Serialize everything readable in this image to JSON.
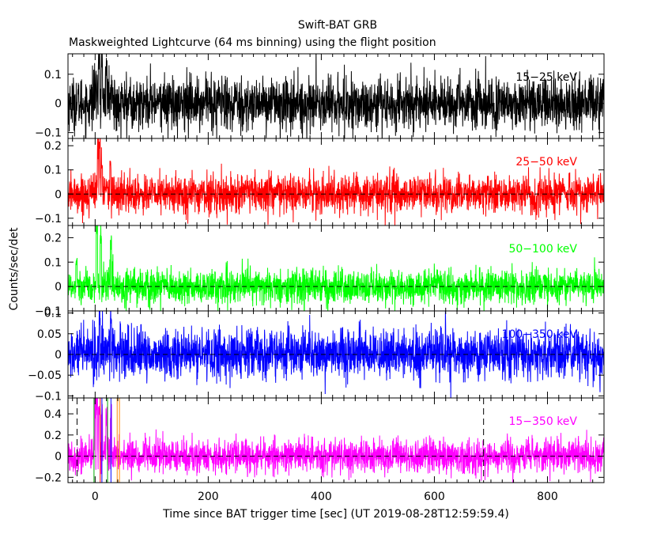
{
  "header": {
    "title": "Swift-BAT GRB",
    "subtitle": "Maskweighted Lightcurve (64 ms binning) using the flight position"
  },
  "axes": {
    "xlabel": "Time since BAT trigger time [sec] (UT 2019-08-28T12:59:59.4)",
    "ylabel": "Counts/sec/det"
  },
  "chart_data": {
    "type": "line",
    "title": "Swift-BAT GRB",
    "subtitle": "Maskweighted Lightcurve (64 ms binning) using the flight position",
    "xlabel": "Time since BAT trigger time [sec] (UT 2019-08-28T12:59:59.4)",
    "ylabel": "Counts/sec/det",
    "xlim": [
      -48,
      900
    ],
    "x_ticks": [
      0,
      200,
      400,
      600,
      800
    ],
    "x_tick_labels": [
      "0",
      "200",
      "400",
      "600",
      "800"
    ],
    "panels": [
      {
        "name": "15-25 keV",
        "label": "15−25 keV",
        "color": "#000000",
        "ylim": [
          -0.12,
          0.17
        ],
        "y_ticks": [
          -0.1,
          0,
          0.1
        ],
        "y_tick_labels": [
          "−0.1",
          "0",
          "0.1"
        ],
        "zero_line": false,
        "noise_sigma": 0.045,
        "peaks": [
          [
            7,
            0.16
          ],
          [
            12,
            0.15
          ],
          [
            20,
            0.12
          ]
        ]
      },
      {
        "name": "25-50 keV",
        "label": "25−50 keV",
        "color": "#ff0000",
        "ylim": [
          -0.13,
          0.23
        ],
        "y_ticks": [
          -0.1,
          0,
          0.1,
          0.2
        ],
        "y_tick_labels": [
          "−0.1",
          "0",
          "0.1",
          "0.2"
        ],
        "zero_line": true,
        "noise_sigma": 0.04,
        "peaks": [
          [
            5,
            0.2
          ],
          [
            8,
            0.22
          ],
          [
            12,
            0.15
          ],
          [
            27,
            0.14
          ]
        ]
      },
      {
        "name": "50-100 keV",
        "label": "50−100 keV",
        "color": "#00ff00",
        "ylim": [
          -0.1,
          0.25
        ],
        "y_ticks": [
          -0.1,
          0,
          0.1,
          0.2
        ],
        "y_tick_labels": [
          "−0.1",
          "0",
          "0.1",
          "0.2"
        ],
        "zero_line": true,
        "noise_sigma": 0.035,
        "peaks": [
          [
            -33,
            0.12
          ],
          [
            3,
            0.24
          ],
          [
            10,
            0.22
          ],
          [
            28,
            0.21
          ]
        ]
      },
      {
        "name": "100-350 keV",
        "label": "100−350 keV",
        "color": "#0000ff",
        "ylim": [
          -0.105,
          0.105
        ],
        "y_ticks": [
          -0.1,
          -0.05,
          0,
          0.05,
          0.1
        ],
        "y_tick_labels": [
          "−0.1",
          "−0.05",
          "0",
          "0.05",
          "0.1"
        ],
        "zero_line": true,
        "noise_sigma": 0.03,
        "peaks": [
          [
            8,
            0.1
          ],
          [
            28,
            0.1
          ]
        ]
      },
      {
        "name": "15-350 keV",
        "label": "15−350 keV",
        "color": "#ff00ff",
        "ylim": [
          -0.25,
          0.55
        ],
        "y_ticks": [
          -0.2,
          0,
          0.2,
          0.4
        ],
        "y_tick_labels": [
          "−0.2",
          "0",
          "0.2",
          "0.4"
        ],
        "zero_line": true,
        "noise_sigma": 0.08,
        "peaks": [
          [
            0,
            0.5
          ],
          [
            3,
            0.52
          ],
          [
            7,
            0.48
          ],
          [
            12,
            0.5
          ],
          [
            20,
            0.4
          ],
          [
            28,
            0.42
          ]
        ],
        "vlines": [
          {
            "x": -32,
            "color": "#000000",
            "style": "dashed"
          },
          {
            "x": -2,
            "color": "#00aa00",
            "style": "solid"
          },
          {
            "x": 9,
            "color": "#ff0000",
            "style": "solid"
          },
          {
            "x": 12,
            "color": "#0000ff",
            "style": "solid"
          },
          {
            "x": 22,
            "color": "#00aa00",
            "style": "solid"
          },
          {
            "x": 28,
            "color": "#0000ff",
            "style": "solid"
          },
          {
            "x": 39,
            "color": "#ff8800",
            "style": "solid"
          },
          {
            "x": 43,
            "color": "#ff8800",
            "style": "solid"
          },
          {
            "x": 687,
            "color": "#000000",
            "style": "dashed"
          }
        ]
      }
    ]
  }
}
